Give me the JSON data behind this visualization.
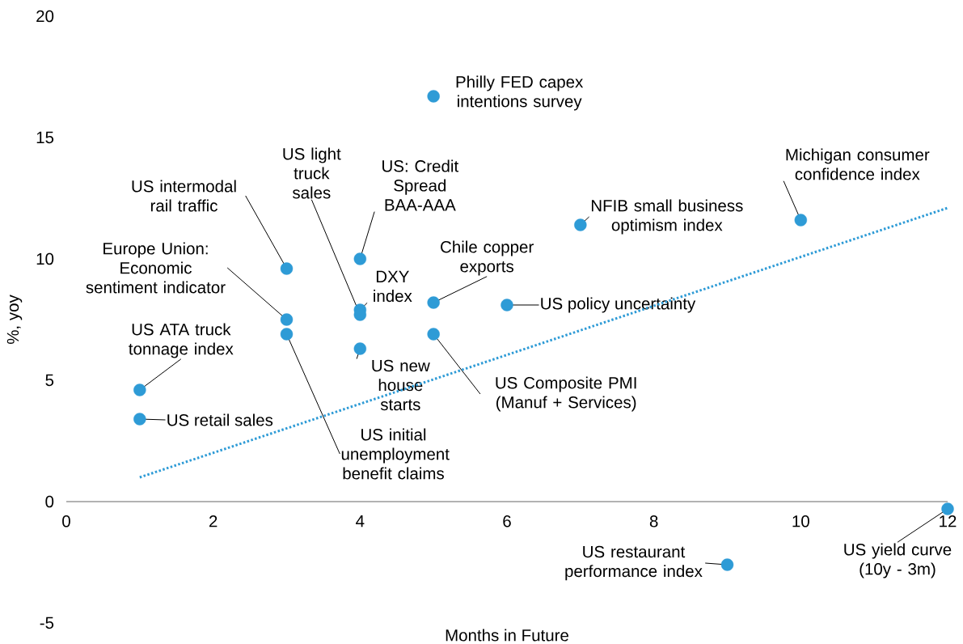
{
  "chart_data": {
    "type": "scatter",
    "xlabel": "Months in Future",
    "ylabel": "%, yoy",
    "marker": "circle",
    "xlim": [
      0,
      12
    ],
    "ylim": [
      -5,
      20
    ],
    "xticks": [
      0,
      2,
      4,
      6,
      8,
      10,
      12
    ],
    "yticks": [
      -5,
      0,
      5,
      10,
      15,
      20
    ],
    "series": [
      {
        "color": "#2e9bd6",
        "x": [
          5,
          10,
          7,
          3,
          4,
          4,
          4,
          5,
          6,
          3,
          3,
          5,
          4,
          1,
          1,
          9,
          12
        ],
        "values": [
          16.7,
          11.6,
          11.4,
          9.6,
          10.0,
          7.9,
          7.7,
          8.2,
          8.1,
          7.5,
          6.9,
          6.9,
          6.3,
          4.6,
          3.4,
          -2.6,
          -0.3
        ]
      },
      {
        "type": "line",
        "color": "#2e9bd6",
        "line_style": "dotted",
        "marker": "none",
        "x": [
          1,
          12
        ],
        "values": [
          1.0,
          12.1
        ]
      }
    ],
    "annotations": [
      {
        "text": "Philly FED capex intentions survey",
        "x": 5,
        "y": 16.7
      },
      {
        "text": "Michigan consumer confidence index",
        "x": 10,
        "y": 11.6
      },
      {
        "text": "NFIB small business optimism index",
        "x": 7,
        "y": 11.4
      },
      {
        "text": "US intermodal rail traffic",
        "x": 3,
        "y": 9.6
      },
      {
        "text": "US: Credit Spread BAA-AAA",
        "x": 4,
        "y": 10.0
      },
      {
        "text": "DXY index",
        "x": 4,
        "y": 7.9
      },
      {
        "text": "US light truck sales",
        "x": 4,
        "y": 7.7
      },
      {
        "text": "Chile copper exports",
        "x": 5,
        "y": 8.2
      },
      {
        "text": "US policy uncertainty",
        "x": 6,
        "y": 8.1
      },
      {
        "text": "Europe Union: Economic sentiment indicator",
        "x": 3,
        "y": 7.5
      },
      {
        "text": "US initial unemployment benefit claims",
        "x": 3,
        "y": 6.9
      },
      {
        "text": "US Composite PMI (Manuf + Services)",
        "x": 5,
        "y": 6.9
      },
      {
        "text": "US new house starts",
        "x": 4,
        "y": 6.3
      },
      {
        "text": "US ATA truck tonnage index",
        "x": 1,
        "y": 4.6
      },
      {
        "text": "US retail sales",
        "x": 1,
        "y": 3.4
      },
      {
        "text": "US restaurant performance index",
        "x": 9,
        "y": -2.6
      },
      {
        "text": "US yield curve (10y - 3m)",
        "x": 12,
        "y": -0.3
      }
    ]
  }
}
